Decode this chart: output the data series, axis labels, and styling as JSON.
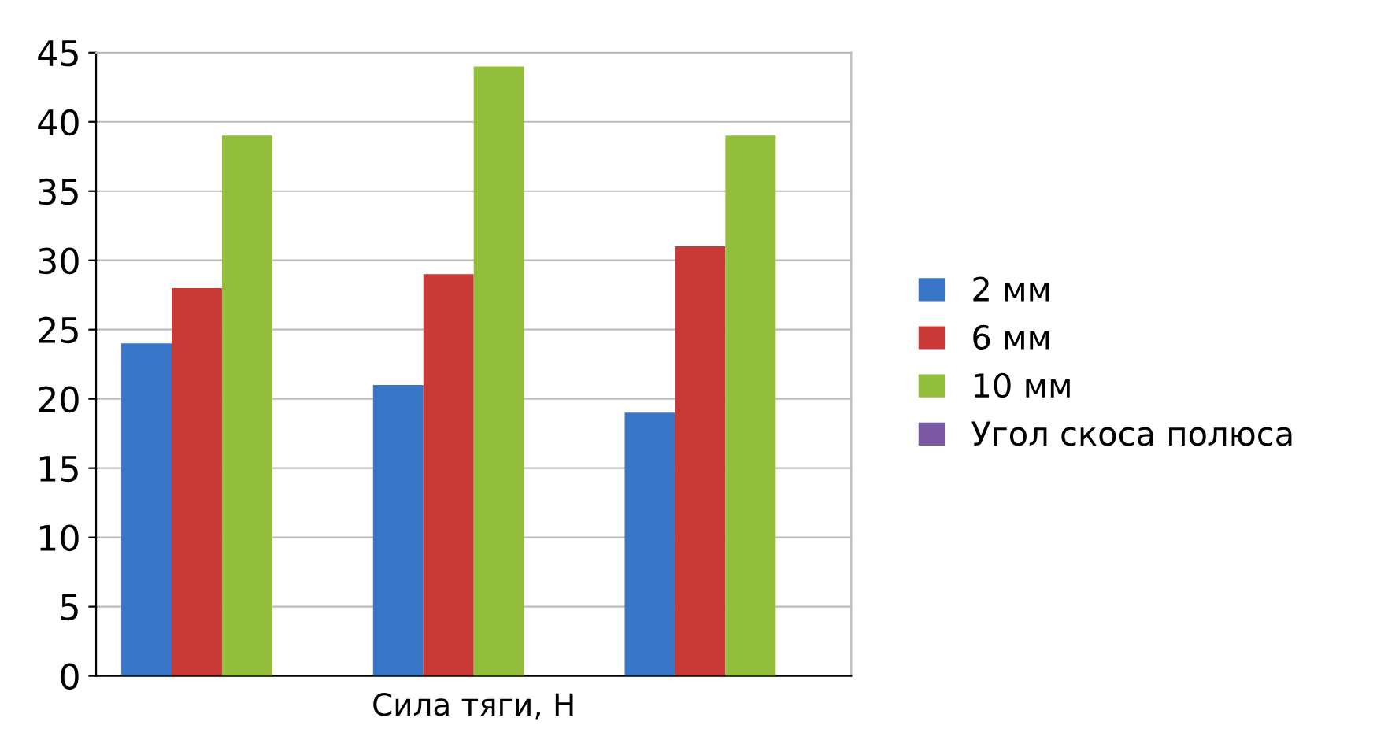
{
  "chart_data": {
    "type": "bar",
    "xlabel": "Сила тяги, Н",
    "categories": [
      null,
      null,
      null
    ],
    "series": [
      {
        "name": "2 мм",
        "color": "#3a76c8",
        "values": [
          24,
          21,
          19
        ]
      },
      {
        "name": "6 мм",
        "color": "#c83a36",
        "values": [
          28,
          29,
          31
        ]
      },
      {
        "name": "10 мм",
        "color": "#93be3c",
        "values": [
          39,
          44,
          39
        ]
      },
      {
        "name": "Угол скоса полюса",
        "color": "#7a58a4",
        "values": [
          null,
          null,
          null
        ]
      }
    ],
    "ylim": [
      0,
      45
    ],
    "yticks": [
      0,
      5,
      10,
      15,
      20,
      25,
      30,
      35,
      40,
      45
    ],
    "grid": "y",
    "legend": "right"
  }
}
